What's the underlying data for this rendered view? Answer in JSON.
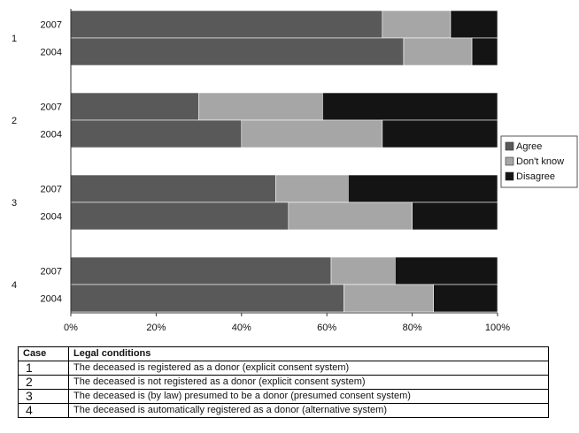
{
  "chart_data": {
    "type": "bar",
    "orientation": "horizontal",
    "stacked": "percent",
    "groups": [
      {
        "case": "1",
        "bars": [
          {
            "year": "2007",
            "values": [
              73,
              16,
              11
            ]
          },
          {
            "year": "2004",
            "values": [
              78,
              16,
              6
            ]
          }
        ]
      },
      {
        "case": "2",
        "bars": [
          {
            "year": "2007",
            "values": [
              30,
              29,
              41
            ]
          },
          {
            "year": "2004",
            "values": [
              40,
              33,
              27
            ]
          }
        ]
      },
      {
        "case": "3",
        "bars": [
          {
            "year": "2007",
            "values": [
              48,
              17,
              35
            ]
          },
          {
            "year": "2004",
            "values": [
              51,
              29,
              20
            ]
          }
        ]
      },
      {
        "case": "4",
        "bars": [
          {
            "year": "2007",
            "values": [
              61,
              15,
              24
            ]
          },
          {
            "year": "2004",
            "values": [
              64,
              21,
              15
            ]
          }
        ]
      }
    ],
    "series": [
      {
        "name": "Agree",
        "color": "#595959"
      },
      {
        "name": "Don't know",
        "color": "#a6a6a6"
      },
      {
        "name": "Disagree",
        "color": "#141414"
      }
    ],
    "x_ticks": [
      "0%",
      "20%",
      "40%",
      "60%",
      "80%",
      "100%"
    ],
    "xlim": [
      0,
      100
    ],
    "legend_position": "right",
    "grid": false
  },
  "table": {
    "headers": [
      "Case",
      "Legal conditions"
    ],
    "rows": [
      [
        "1",
        "The deceased is registered as a donor (explicit consent system)"
      ],
      [
        "2",
        "The deceased is not registered as a donor (explicit consent system)"
      ],
      [
        "3",
        "The deceased is (by law) presumed to be a donor (presumed consent system)"
      ],
      [
        "4",
        "The deceased is automatically registered as a donor (alternative system)"
      ]
    ]
  }
}
